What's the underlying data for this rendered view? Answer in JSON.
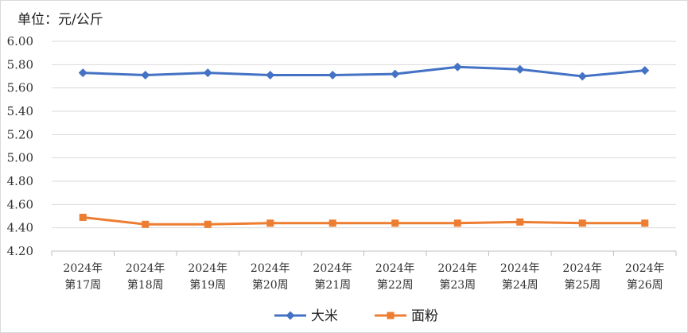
{
  "unit_label": "单位：元/公斤",
  "chart_data": {
    "type": "line",
    "categories": [
      [
        "2024年",
        "第17周"
      ],
      [
        "2024年",
        "第18周"
      ],
      [
        "2024年",
        "第19周"
      ],
      [
        "2024年",
        "第20周"
      ],
      [
        "2024年",
        "第21周"
      ],
      [
        "2024年",
        "第22周"
      ],
      [
        "2024年",
        "第23周"
      ],
      [
        "2024年",
        "第24周"
      ],
      [
        "2024年",
        "第25周"
      ],
      [
        "2024年",
        "第26周"
      ]
    ],
    "y_ticks": [
      "4.20",
      "4.40",
      "4.60",
      "4.80",
      "5.00",
      "5.20",
      "5.40",
      "5.60",
      "5.80",
      "6.00"
    ],
    "ylim": [
      4.2,
      6.0
    ],
    "grid": true,
    "legend_position": "bottom",
    "series": [
      {
        "name": "大米",
        "color": "#4472c4",
        "marker": "diamond",
        "values": [
          5.73,
          5.71,
          5.73,
          5.71,
          5.71,
          5.72,
          5.78,
          5.76,
          5.7,
          5.75
        ]
      },
      {
        "name": "面粉",
        "color": "#ed7d31",
        "marker": "square",
        "values": [
          4.49,
          4.43,
          4.43,
          4.44,
          4.44,
          4.44,
          4.44,
          4.45,
          4.44,
          4.44
        ]
      }
    ]
  }
}
